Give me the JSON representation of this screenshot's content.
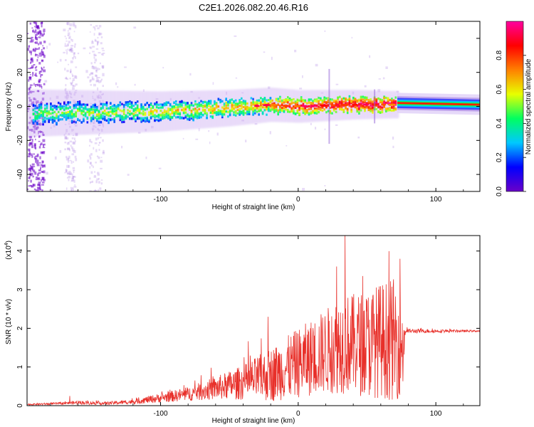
{
  "title": "C2E1.2026.082.20.46.R16",
  "colors": {
    "snr_line": "#e8302a",
    "frame": "#000000"
  },
  "chart_data": [
    {
      "type": "heatmap",
      "name": "spectrogram",
      "xlabel": "Height of straight line (km)",
      "ylabel": "Frequency (Hz)",
      "xlim": [
        -197,
        132
      ],
      "ylim": [
        -50,
        50
      ],
      "x_ticks": [
        -100,
        0,
        100
      ],
      "x_tick_labels": [
        "-100",
        "0",
        "100"
      ],
      "y_ticks": [
        -40,
        -20,
        0,
        20,
        40
      ],
      "y_tick_labels": [
        "-40",
        "-20",
        "0",
        "20",
        "40"
      ],
      "colorbar": {
        "label": "Normalized spectral amplitude",
        "range": [
          0,
          1
        ],
        "ticks": [
          0.0,
          0.2,
          0.4,
          0.6,
          0.8
        ],
        "tick_labels": [
          "0.0",
          "0.2",
          "0.4",
          "0.6",
          "0.8"
        ],
        "colormap": [
          "#6a00c8",
          "#0000ff",
          "#00c8ff",
          "#00ff60",
          "#e8ff00",
          "#ff8000",
          "#ff0000",
          "#ff00a0"
        ]
      },
      "ridge": {
        "segments": [
          {
            "x": [
              -197,
              -100,
              -50,
              -20,
              0,
              40,
              70
            ],
            "freq_hz": [
              -4,
              -3,
              -1,
              1,
              0,
              1,
              1
            ],
            "spread_hz": 6
          },
          {
            "x": [
              73,
              132
            ],
            "freq_hz": [
              2,
              1
            ],
            "spread_hz": 3
          }
        ],
        "transition_km": 72
      }
    },
    {
      "type": "line",
      "name": "snr",
      "xlabel": "Height of straight line (km)",
      "ylabel": "SNR (10 * v/v)",
      "y_scale_label": "(x10",
      "y_scale_exponent": "4",
      "xlim": [
        -197,
        132
      ],
      "ylim": [
        0,
        4.4
      ],
      "x_ticks": [
        -100,
        0,
        100
      ],
      "x_tick_labels": [
        "-100",
        "0",
        "100"
      ],
      "y_ticks": [
        0,
        1,
        2,
        3,
        4
      ],
      "y_tick_labels": [
        "0",
        "1",
        "2",
        "3",
        "4"
      ],
      "series": [
        {
          "name": "SNR",
          "envelope_x": [
            -197,
            -170,
            -160,
            -140,
            -120,
            -100,
            -80,
            -60,
            -40,
            -20,
            0,
            20,
            30,
            40,
            50,
            60,
            70,
            76,
            78,
            132
          ],
          "envelope_mean": [
            0.03,
            0.06,
            0.08,
            0.06,
            0.1,
            0.2,
            0.3,
            0.45,
            0.6,
            0.8,
            1.1,
            1.4,
            1.6,
            1.6,
            1.6,
            1.7,
            1.7,
            1.5,
            1.93,
            1.93
          ],
          "envelope_amp": [
            0.02,
            0.03,
            0.05,
            0.04,
            0.06,
            0.12,
            0.18,
            0.3,
            0.45,
            0.7,
            0.9,
            1.1,
            1.3,
            1.3,
            1.4,
            1.5,
            1.6,
            1.2,
            0.06,
            0.02
          ],
          "peaks": [
            {
              "x": -166,
              "y": 0.25
            },
            {
              "x": -22,
              "y": 2.3
            },
            {
              "x": 28,
              "y": 3.6
            },
            {
              "x": 34,
              "y": 4.4
            },
            {
              "x": 74,
              "y": 3.8
            }
          ]
        }
      ]
    }
  ]
}
